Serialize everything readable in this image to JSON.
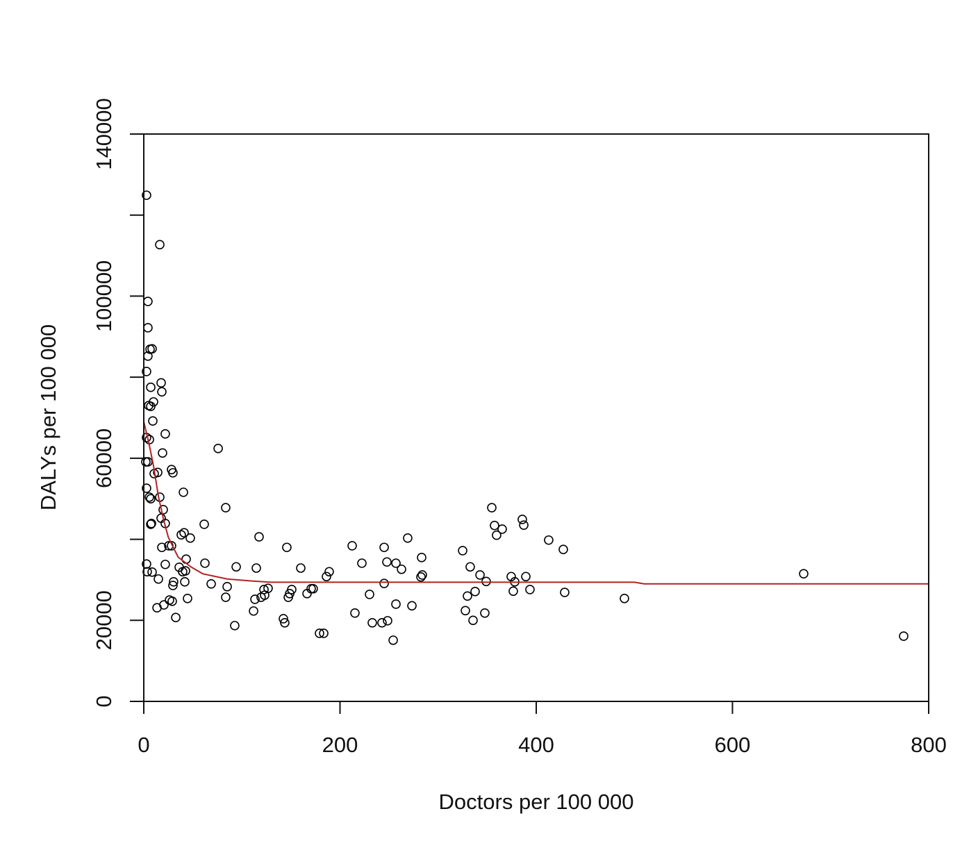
{
  "chart_data": {
    "type": "scatter",
    "title": "",
    "xlabel": "Doctors per 100 000",
    "ylabel": "DALYs per 100 000",
    "xlim": [
      0,
      800
    ],
    "ylim": [
      0,
      140000
    ],
    "x_ticks": [
      0,
      200,
      400,
      600,
      800
    ],
    "x_tick_labels": [
      "0",
      "200",
      "400",
      "600",
      "800"
    ],
    "y_ticks": [
      0,
      20000,
      40000,
      60000,
      80000,
      100000,
      120000,
      140000
    ],
    "y_tick_labels": [
      "0",
      "20000",
      "60000",
      "100000",
      "140000"
    ],
    "y_tick_label_values": [
      0,
      20000,
      60000,
      100000,
      140000
    ],
    "grid": false,
    "marker": "open-circle",
    "point_color": "#000000",
    "fit_color": "#b22222",
    "points": [
      [
        2.8,
        124900
      ],
      [
        16.3,
        112700
      ],
      [
        4.2,
        98700
      ],
      [
        4.2,
        92200
      ],
      [
        8.5,
        87000
      ],
      [
        6.4,
        86900
      ],
      [
        4.2,
        85200
      ],
      [
        2.8,
        81400
      ],
      [
        7.1,
        77500
      ],
      [
        17.7,
        78600
      ],
      [
        18.4,
        76400
      ],
      [
        5.0,
        73000
      ],
      [
        9.9,
        73900
      ],
      [
        7.1,
        72800
      ],
      [
        9.2,
        69200
      ],
      [
        21.9,
        66000
      ],
      [
        5.7,
        64600
      ],
      [
        2.8,
        65100
      ],
      [
        19.1,
        61300
      ],
      [
        2.1,
        59100
      ],
      [
        4.2,
        59100
      ],
      [
        28.3,
        57200
      ],
      [
        29.7,
        56400
      ],
      [
        10.6,
        56200
      ],
      [
        14.2,
        56500
      ],
      [
        40.4,
        51600
      ],
      [
        2.8,
        52600
      ],
      [
        5.7,
        50400
      ],
      [
        7.1,
        50000
      ],
      [
        16.3,
        50400
      ],
      [
        19.8,
        47300
      ],
      [
        7.8,
        43900
      ],
      [
        7.1,
        43700
      ],
      [
        17.7,
        45200
      ],
      [
        21.9,
        43900
      ],
      [
        41.1,
        41600
      ],
      [
        38.2,
        41100
      ],
      [
        47.4,
        40300
      ],
      [
        25.5,
        38400
      ],
      [
        28.3,
        38400
      ],
      [
        18.4,
        38000
      ],
      [
        43.2,
        35100
      ],
      [
        62.3,
        34100
      ],
      [
        2.8,
        33900
      ],
      [
        21.9,
        33800
      ],
      [
        36.1,
        33100
      ],
      [
        39.6,
        32000
      ],
      [
        42.5,
        32200
      ],
      [
        3.5,
        32000
      ],
      [
        8.5,
        31900
      ],
      [
        14.9,
        30200
      ],
      [
        30.4,
        29500
      ],
      [
        29.7,
        28600
      ],
      [
        41.8,
        29500
      ],
      [
        68.7,
        29000
      ],
      [
        85.0,
        28300
      ],
      [
        83.5,
        25700
      ],
      [
        44.6,
        25400
      ],
      [
        26.2,
        25000
      ],
      [
        29.0,
        24700
      ],
      [
        20.5,
        23800
      ],
      [
        13.5,
        23100
      ],
      [
        32.6,
        20700
      ],
      [
        75.8,
        62400
      ],
      [
        83.5,
        47800
      ],
      [
        61.6,
        43700
      ],
      [
        94.2,
        33200
      ],
      [
        114.7,
        32900
      ],
      [
        117.5,
        40600
      ],
      [
        92.7,
        18700
      ],
      [
        111.9,
        22300
      ],
      [
        113.3,
        25200
      ],
      [
        119.6,
        25700
      ],
      [
        123.2,
        26200
      ],
      [
        126.7,
        27900
      ],
      [
        122.5,
        27600
      ],
      [
        145.8,
        38000
      ],
      [
        147.3,
        25700
      ],
      [
        150.8,
        27600
      ],
      [
        148.7,
        26600
      ],
      [
        160.0,
        32900
      ],
      [
        166.4,
        26600
      ],
      [
        170.6,
        27800
      ],
      [
        172.7,
        27800
      ],
      [
        186.2,
        30800
      ],
      [
        189.0,
        32000
      ],
      [
        142.3,
        20400
      ],
      [
        143.7,
        19400
      ],
      [
        179.1,
        16800
      ],
      [
        183.4,
        16800
      ],
      [
        212.4,
        38400
      ],
      [
        222.3,
        34100
      ],
      [
        215.2,
        21800
      ],
      [
        230.1,
        26400
      ],
      [
        232.9,
        19400
      ],
      [
        242.8,
        19400
      ],
      [
        248.5,
        19900
      ],
      [
        245.0,
        29100
      ],
      [
        245.0,
        38000
      ],
      [
        247.8,
        34400
      ],
      [
        257.0,
        34100
      ],
      [
        262.7,
        32600
      ],
      [
        269.0,
        40300
      ],
      [
        283.2,
        35500
      ],
      [
        282.5,
        30700
      ],
      [
        283.9,
        31200
      ],
      [
        257.0,
        24000
      ],
      [
        273.3,
        23600
      ],
      [
        254.2,
        15100
      ],
      [
        325.0,
        37200
      ],
      [
        332.7,
        33200
      ],
      [
        342.7,
        31200
      ],
      [
        349.0,
        29600
      ],
      [
        329.9,
        26000
      ],
      [
        337.7,
        27100
      ],
      [
        327.8,
        22400
      ],
      [
        335.6,
        20000
      ],
      [
        347.6,
        21800
      ],
      [
        354.7,
        47800
      ],
      [
        357.5,
        43400
      ],
      [
        359.6,
        41000
      ],
      [
        365.3,
        42500
      ],
      [
        385.8,
        44900
      ],
      [
        387.3,
        43500
      ],
      [
        374.5,
        30800
      ],
      [
        378.1,
        29500
      ],
      [
        376.6,
        27200
      ],
      [
        389.4,
        30800
      ],
      [
        393.6,
        27600
      ],
      [
        412.7,
        39800
      ],
      [
        427.6,
        37500
      ],
      [
        429.0,
        26900
      ],
      [
        489.9,
        25400
      ],
      [
        672.6,
        31500
      ],
      [
        774.5,
        16100
      ]
    ],
    "fit_line": [
      [
        0,
        69000
      ],
      [
        5,
        64000
      ],
      [
        10,
        58000
      ],
      [
        15,
        50500
      ],
      [
        20,
        45000
      ],
      [
        25,
        40500
      ],
      [
        35,
        35600
      ],
      [
        48,
        33200
      ],
      [
        60,
        31500
      ],
      [
        85,
        30200
      ],
      [
        110,
        29700
      ],
      [
        130,
        29400
      ],
      [
        200,
        29400
      ],
      [
        500,
        29400
      ],
      [
        510,
        29000
      ],
      [
        800,
        29000
      ]
    ]
  }
}
